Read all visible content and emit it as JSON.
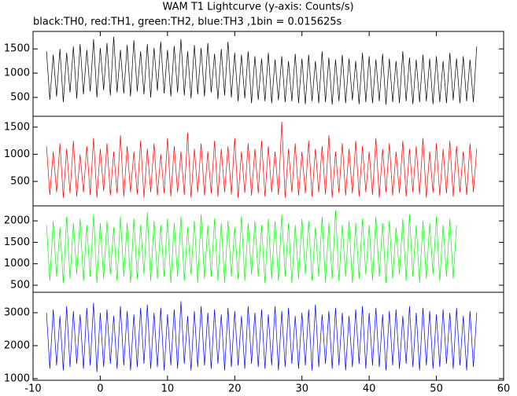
{
  "chart_data": {
    "type": "line",
    "title": "WAM T1 Lightcurve (y-axis: Counts/s)",
    "subtitle": "black:TH0, red:TH1, green:TH2, blue:TH3 ,1bin = 0.015625s",
    "xlim": [
      -10,
      60
    ],
    "xticks": [
      -10,
      0,
      10,
      20,
      30,
      40,
      50,
      60
    ],
    "x": [
      -8,
      -7.5,
      -7,
      -6.5,
      -6,
      -5.5,
      -5,
      -4.5,
      -4,
      -3.5,
      -3,
      -2.5,
      -2,
      -1.5,
      -1,
      -0.5,
      0,
      0.5,
      1,
      1.5,
      2,
      2.5,
      3,
      3.5,
      4,
      4.5,
      5,
      5.5,
      6,
      6.5,
      7,
      7.5,
      8,
      8.5,
      9,
      9.5,
      10,
      10.5,
      11,
      11.5,
      12,
      12.5,
      13,
      13.5,
      14,
      14.5,
      15,
      15.5,
      16,
      16.5,
      17,
      17.5,
      18,
      18.5,
      19,
      19.5,
      20,
      20.5,
      21,
      21.5,
      22,
      22.5,
      23,
      23.5,
      24,
      24.5,
      25,
      25.5,
      26,
      26.5,
      27,
      27.5,
      28,
      28.5,
      29,
      29.5,
      30,
      30.5,
      31,
      31.5,
      32,
      32.5,
      33,
      33.5,
      34,
      34.5,
      35,
      35.5,
      36,
      36.5,
      37,
      37.5,
      38,
      38.5,
      39,
      39.5,
      40,
      40.5,
      41,
      41.5,
      42,
      42.5,
      43,
      43.5,
      44,
      44.5,
      45,
      45.5,
      46,
      46.5,
      47,
      47.5,
      48,
      48.5,
      49,
      49.5,
      50,
      50.5,
      51,
      51.5,
      52,
      52.5,
      53,
      53.5,
      54,
      54.5,
      55,
      55.5,
      56
    ],
    "panels": [
      {
        "ylim": [
          110,
          1860
        ],
        "yticks": [
          500,
          1000,
          1500
        ],
        "series": [
          {
            "color": "#000000",
            "values": [
              1450,
              450,
              1380,
              520,
              1500,
              400,
              1420,
              600,
              1550,
              480,
              1600,
              560,
              1480,
              620,
              1700,
              500,
              1520,
              650,
              1620,
              540,
              1750,
              600,
              1480,
              580,
              1580,
              520,
              1680,
              620,
              1450,
              560,
              1600,
              500,
              1520,
              640,
              1650,
              580,
              1480,
              520,
              1560,
              600,
              1700,
              540,
              1450,
              480,
              1580,
              560,
              1520,
              520,
              1620,
              600,
              1400,
              460,
              1500,
              540,
              1650,
              500,
              1420,
              420,
              1380,
              480,
              1450,
              380,
              1350,
              450,
              1300,
              420,
              1420,
              380,
              1280,
              440,
              1350,
              400,
              1250,
              420,
              1400,
              380,
              1300,
              360,
              1380,
              420,
              1250,
              380,
              1450,
              400,
              1320,
              350,
              1280,
              420,
              1380,
              380,
              1300,
              440,
              1250,
              360,
              1420,
              400,
              1350,
              380,
              1280,
              420,
              1400,
              350,
              1300,
              400,
              1250,
              380,
              1450,
              420,
              1320,
              360,
              1280,
              400,
              1380,
              420,
              1300,
              360,
              1350,
              400,
              1250,
              380,
              1420,
              440,
              1300,
              380,
              1350,
              420,
              1280,
              400,
              1550
            ]
          }
        ]
      },
      {
        "ylim": [
          50,
          1700
        ],
        "yticks": [
          500,
          1000,
          1500
        ],
        "series": [
          {
            "color": "#ff0000",
            "values": [
              1150,
              250,
              1050,
              300,
              1200,
              200,
              1100,
              280,
              1250,
              220,
              1000,
              300,
              1150,
              250,
              1300,
              200,
              1100,
              320,
              1200,
              240,
              1050,
              280,
              1350,
              220,
              1150,
              300,
              1050,
              260,
              1250,
              200,
              1100,
              300,
              1200,
              240,
              1000,
              280,
              1300,
              220,
              1150,
              300,
              1050,
              250,
              1400,
              200,
              1100,
              300,
              1200,
              240,
              1050,
              280,
              1250,
              220,
              1100,
              300,
              1150,
              260,
              1300,
              200,
              1050,
              290,
              1200,
              240,
              1100,
              280,
              1250,
              220,
              1150,
              300,
              1050,
              250,
              1600,
              200,
              1100,
              300,
              1200,
              240,
              1050,
              280,
              1250,
              220,
              1100,
              300,
              1150,
              260,
              1350,
              200,
              1050,
              290,
              1200,
              240,
              1100,
              280,
              1250,
              220,
              1150,
              300,
              1050,
              250,
              1300,
              200,
              1100,
              300,
              1200,
              240,
              1050,
              280,
              1250,
              220,
              1100,
              300,
              1150,
              260,
              1300,
              200,
              1050,
              290,
              1200,
              240,
              1100,
              280,
              1250,
              220,
              1150,
              300,
              1050,
              250,
              1200,
              300,
              1100
            ]
          }
        ]
      },
      {
        "ylim": [
          335,
          2350
        ],
        "yticks": [
          500,
          1000,
          1500,
          2000
        ],
        "series": [
          {
            "color": "#00ff00",
            "values": [
              1900,
              600,
              2000,
              700,
              1850,
              550,
              2100,
              650,
              1950,
              750,
              2050,
              600,
              1900,
              700,
              2150,
              550,
              1950,
              650,
              2000,
              750,
              1850,
              600,
              2100,
              700,
              1950,
              550,
              2050,
              650,
              1900,
              750,
              2200,
              600,
              2000,
              650,
              1900,
              700,
              2050,
              550,
              1950,
              700,
              2100,
              600,
              1850,
              750,
              2000,
              550,
              2150,
              650,
              1900,
              700,
              2050,
              600,
              1950,
              550,
              2000,
              700,
              1850,
              650,
              2100,
              600,
              1950,
              750,
              2000,
              700,
              1900,
              550,
              2050,
              650,
              2000,
              600,
              2150,
              700,
              1950,
              550,
              1900,
              650,
              2050,
              750,
              2000,
              600,
              1850,
              700,
              2100,
              550,
              1950,
              650,
              2250,
              600,
              1900,
              700,
              2000,
              550,
              1950,
              650,
              2050,
              750,
              1900,
              600,
              2100,
              700,
              1950,
              550,
              2000,
              650,
              1850,
              750,
              2050,
              600,
              2150,
              700,
              1900,
              550,
              2000,
              650,
              1950,
              750,
              2100,
              600,
              1900,
              700,
              2050,
              650,
              1900
            ]
          }
        ]
      },
      {
        "ylim": [
          950,
          3620
        ],
        "yticks": [
          1000,
          2000,
          3000
        ],
        "series": [
          {
            "color": "#0000ff",
            "values": [
              3000,
              1300,
              3100,
              1400,
              2900,
              1250,
              3200,
              1350,
              3050,
              1450,
              2950,
              1300,
              3150,
              1400,
              3300,
              1200,
              3000,
              1350,
              3100,
              1450,
              2900,
              1300,
              3200,
              1400,
              3050,
              1250,
              2950,
              1350,
              3150,
              1450,
              3250,
              1300,
              3000,
              1350,
              3150,
              1250,
              2950,
              1400,
              3100,
              1300,
              3350,
              1450,
              2900,
              1250,
              3050,
              1350,
              3200,
              1400,
              3000,
              1300,
              3100,
              1450,
              2950,
              1250,
              3150,
              1350,
              3050,
              1400,
              2900,
              1300,
              3200,
              1450,
              3000,
              1350,
              3100,
              1300,
              2950,
              1400,
              3200,
              1250,
              3050,
              1350,
              3150,
              1450,
              2900,
              1300,
              3000,
              1400,
              3100,
              1250,
              3250,
              1350,
              2950,
              1450,
              3050,
              1300,
              3150,
              1400,
              3000,
              1250,
              2900,
              1350,
              3100,
              1450,
              3200,
              1300,
              3000,
              1400,
              3150,
              1350,
              2950,
              1250,
              3050,
              1400,
              3100,
              1300,
              2900,
              1450,
              3200,
              1350,
              3000,
              1250,
              3150,
              1400,
              3050,
              1300,
              2950,
              1350,
              3100,
              1450,
              3000,
              1300,
              3150,
              1400,
              2900,
              1250,
              3050,
              1350,
              3000
            ]
          }
        ]
      }
    ]
  }
}
